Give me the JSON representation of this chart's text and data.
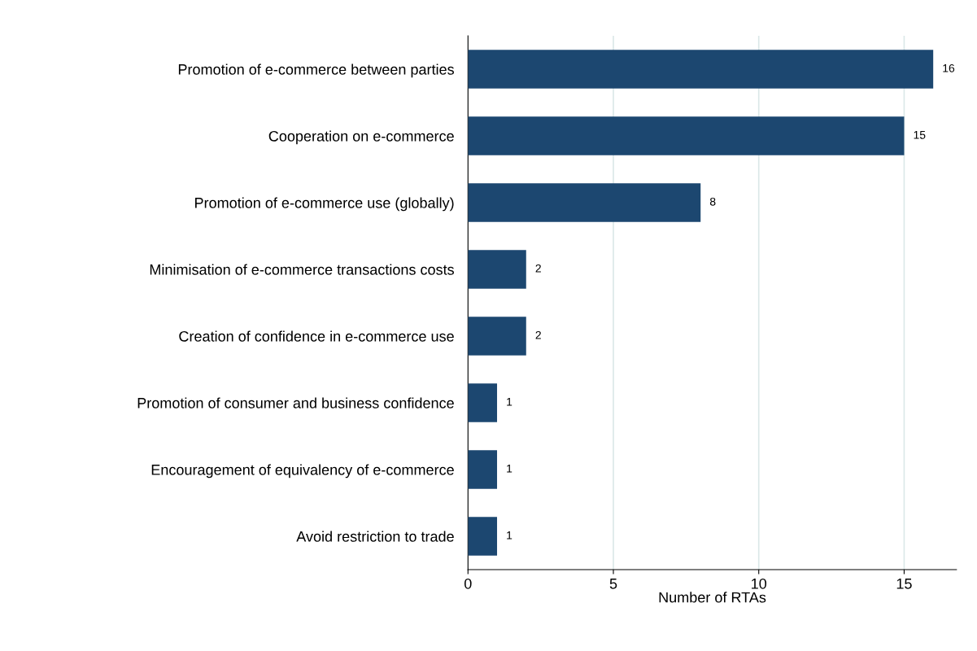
{
  "chart_data": {
    "type": "bar",
    "orientation": "horizontal",
    "xlabel": "Number of RTAs",
    "categories": [
      "Promotion of e-commerce between parties",
      "Cooperation on e-commerce",
      "Promotion of e-commerce use (globally)",
      "Minimisation of e-commerce transactions costs",
      "Creation of confidence in e-commerce use",
      "Promotion of consumer and business confidence",
      "Encouragement of equivalency of e-commerce",
      "Avoid restriction to trade"
    ],
    "values": [
      16,
      15,
      8,
      2,
      2,
      1,
      1,
      1
    ],
    "color": "#1c4770",
    "xlim": [
      0,
      16.8
    ],
    "xticks": [
      0,
      5,
      10,
      15
    ],
    "grid": "x",
    "data_labels": true
  }
}
